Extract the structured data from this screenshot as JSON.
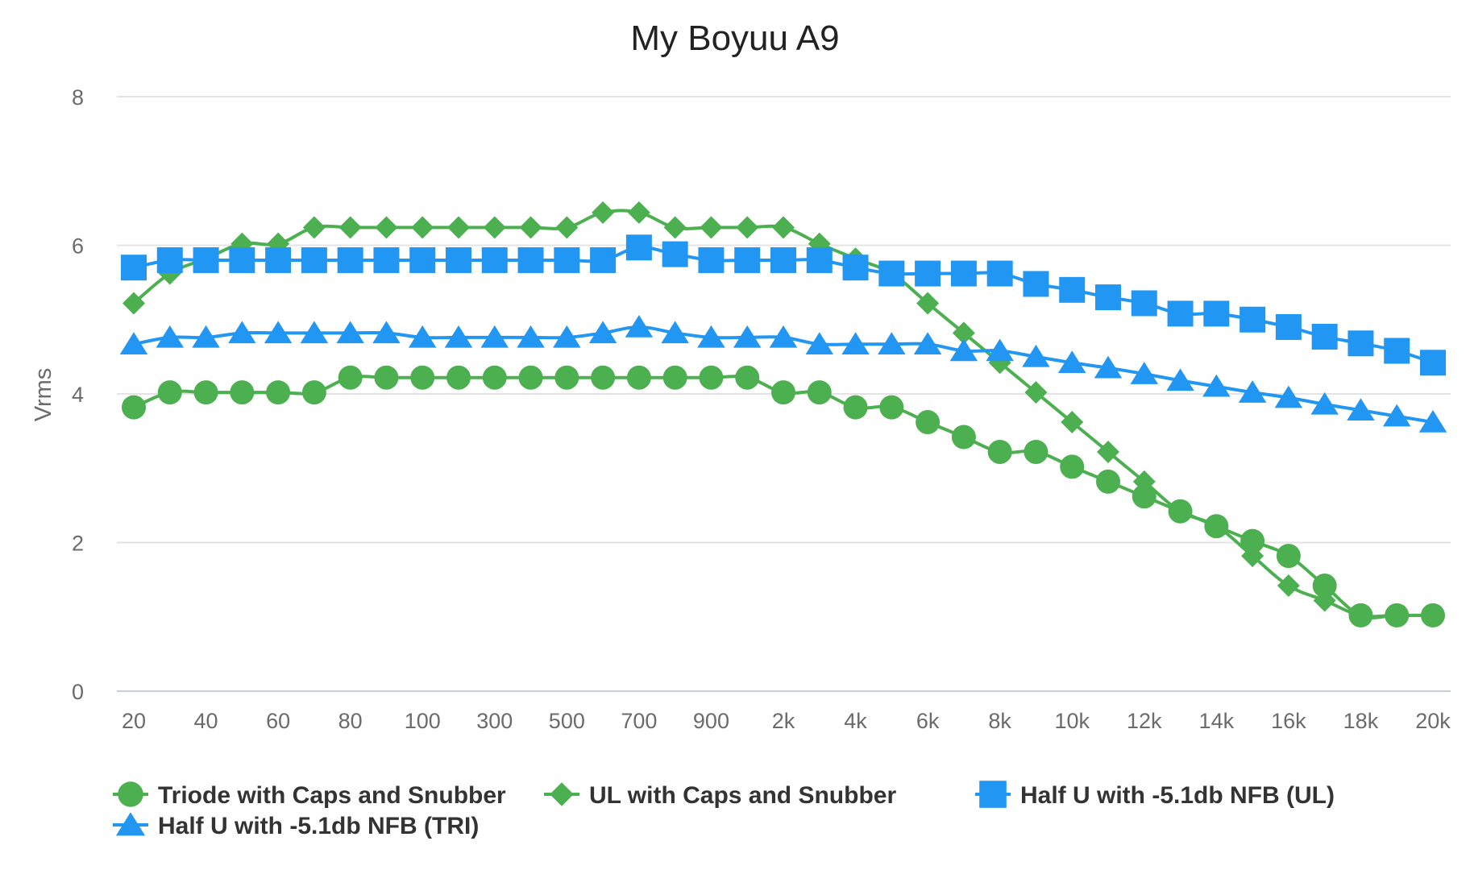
{
  "chart_data": {
    "type": "line",
    "title": "My Boyuu A9",
    "xlabel": "",
    "ylabel": "Vrms",
    "ylim": [
      0,
      8
    ],
    "yticks": [
      0,
      2,
      4,
      6,
      8
    ],
    "grid": true,
    "legend_position": "bottom",
    "x": [
      "20",
      "30",
      "40",
      "50",
      "60",
      "70",
      "80",
      "90",
      "100",
      "200",
      "300",
      "400",
      "500",
      "600",
      "700",
      "800",
      "900",
      "1k",
      "2k",
      "3k",
      "4k",
      "5k",
      "6k",
      "7k",
      "8k",
      "9k",
      "10k",
      "11k",
      "12k",
      "13k",
      "14k",
      "15k",
      "16k",
      "17k",
      "18k",
      "19k",
      "20k"
    ],
    "x_tick_labels": [
      "20",
      "40",
      "60",
      "80",
      "100",
      "300",
      "500",
      "700",
      "900",
      "2k",
      "4k",
      "6k",
      "8k",
      "10k",
      "12k",
      "14k",
      "16k",
      "18k",
      "20k"
    ],
    "series": [
      {
        "name": "Triode with Caps and Snubber",
        "color": "#4caf50",
        "marker": "circle",
        "values": [
          3.82,
          4.02,
          4.02,
          4.02,
          4.02,
          4.02,
          4.22,
          4.22,
          4.22,
          4.22,
          4.22,
          4.22,
          4.22,
          4.22,
          4.22,
          4.22,
          4.22,
          4.22,
          4.02,
          4.02,
          3.82,
          3.82,
          3.62,
          3.42,
          3.22,
          3.22,
          3.02,
          2.82,
          2.62,
          2.42,
          2.22,
          2.02,
          1.82,
          1.42,
          1.02,
          1.02,
          1.02
        ]
      },
      {
        "name": "UL with Caps and Snubber",
        "color": "#4caf50",
        "marker": "diamond",
        "values": [
          5.22,
          5.62,
          5.82,
          6.02,
          6.02,
          6.24,
          6.24,
          6.24,
          6.24,
          6.24,
          6.24,
          6.24,
          6.24,
          6.44,
          6.44,
          6.24,
          6.24,
          6.24,
          6.24,
          6.02,
          5.82,
          5.62,
          5.22,
          4.82,
          4.42,
          4.02,
          3.62,
          3.22,
          2.82,
          2.42,
          2.22,
          1.82,
          1.42,
          1.22,
          1.02,
          1.02,
          1.02
        ]
      },
      {
        "name": "Half U with -5.1db NFB (UL)",
        "color": "#2196f3",
        "marker": "square",
        "values": [
          5.7,
          5.8,
          5.8,
          5.8,
          5.8,
          5.8,
          5.8,
          5.8,
          5.8,
          5.8,
          5.8,
          5.8,
          5.8,
          5.8,
          5.97,
          5.88,
          5.8,
          5.8,
          5.8,
          5.8,
          5.7,
          5.62,
          5.62,
          5.62,
          5.62,
          5.48,
          5.4,
          5.3,
          5.22,
          5.08,
          5.08,
          5.0,
          4.9,
          4.77,
          4.68,
          4.58,
          4.42
        ]
      },
      {
        "name": "Half U with -5.1db NFB (TRI)",
        "color": "#2196f3",
        "marker": "triangle",
        "values": [
          4.67,
          4.76,
          4.76,
          4.82,
          4.82,
          4.82,
          4.82,
          4.82,
          4.76,
          4.76,
          4.76,
          4.76,
          4.76,
          4.82,
          4.9,
          4.82,
          4.76,
          4.76,
          4.76,
          4.67,
          4.67,
          4.67,
          4.67,
          4.58,
          4.58,
          4.5,
          4.42,
          4.35,
          4.27,
          4.18,
          4.1,
          4.02,
          3.95,
          3.86,
          3.78,
          3.7,
          3.62
        ]
      }
    ]
  }
}
